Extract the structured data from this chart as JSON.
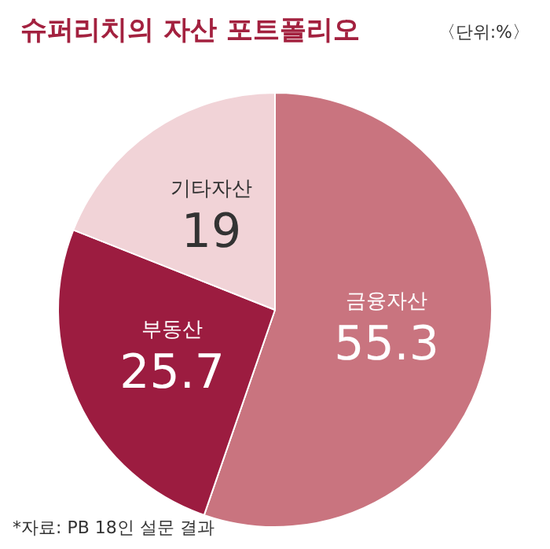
{
  "chart_data": {
    "type": "pie",
    "title": "슈퍼리치의 자산 포트폴리오",
    "subtitle": "〈단위:%〉",
    "categories": [
      "금융자산",
      "부동산",
      "기타자산"
    ],
    "values": [
      55.3,
      25.7,
      19
    ],
    "colors": [
      "#c9747f",
      "#9c1c40",
      "#f1d3d7"
    ],
    "data_labels": true,
    "legend": false,
    "annotations": [
      "*자료: PB 18인 설문 결과"
    ]
  }
}
